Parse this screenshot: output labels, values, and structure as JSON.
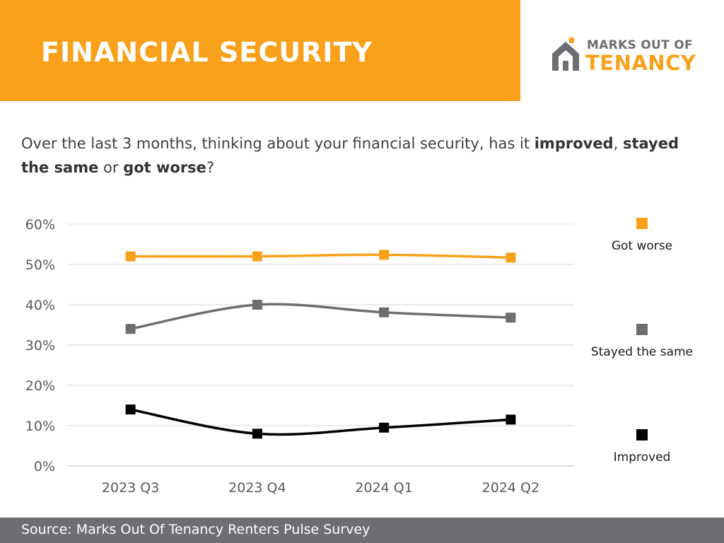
{
  "header": {
    "title": "Financial security",
    "background_color": "#f9a11b"
  },
  "logo": {
    "line1": "MARKS OUT OF",
    "line2": "TENANCY",
    "icon": "house-icon"
  },
  "question": {
    "p1": "Over the last 3 months, thinking about your financial security, has it ",
    "b1": "improved",
    "p2": ", ",
    "b2": "stayed the same",
    "p3": " or ",
    "b3": "got worse",
    "p4": "?"
  },
  "chart_data": {
    "type": "line",
    "categories": [
      "2023 Q3",
      "2023 Q4",
      "2024 Q1",
      "2024 Q2"
    ],
    "ylim": [
      0,
      60
    ],
    "yticks": [
      0,
      10,
      20,
      30,
      40,
      50,
      60
    ],
    "ytick_labels": [
      "0%",
      "10%",
      "20%",
      "30%",
      "40%",
      "50%",
      "60%"
    ],
    "grid": true,
    "legend_position": "right",
    "series": [
      {
        "name": "Got worse",
        "values": [
          52,
          52,
          52.4,
          51.7
        ],
        "color": "#f9a11b"
      },
      {
        "name": "Stayed the same",
        "values": [
          34,
          40,
          38.1,
          36.8
        ],
        "color": "#6d6e71"
      },
      {
        "name": "Improved",
        "values": [
          14,
          8,
          9.5,
          11.5
        ],
        "color": "#000000"
      }
    ]
  },
  "footer": {
    "source": "Source: Marks Out Of Tenancy Renters Pulse Survey"
  }
}
